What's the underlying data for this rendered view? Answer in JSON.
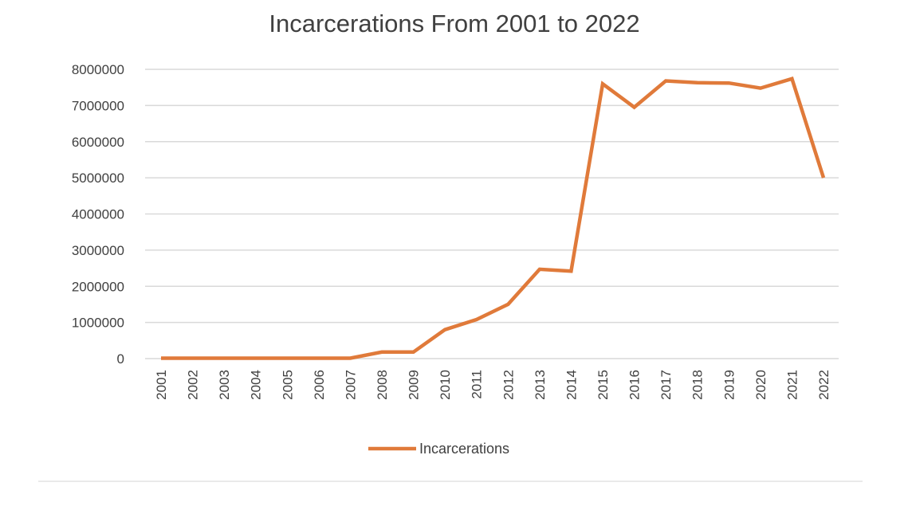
{
  "chart_data": {
    "type": "line",
    "title": "Incarcerations From 2001 to 2022",
    "xlabel": "",
    "ylabel": "",
    "x": [
      "2001",
      "2002",
      "2003",
      "2004",
      "2005",
      "2006",
      "2007",
      "2008",
      "2009",
      "2010",
      "2011",
      "2012",
      "2013",
      "2014",
      "2015",
      "2016",
      "2017",
      "2018",
      "2019",
      "2020",
      "2021",
      "2022"
    ],
    "series": [
      {
        "name": "Incarcerations",
        "color": "#e07a3a",
        "values": [
          10000,
          10000,
          10000,
          10000,
          10000,
          10000,
          10000,
          180000,
          180000,
          800000,
          1080000,
          1500000,
          2470000,
          2420000,
          7600000,
          6950000,
          7680000,
          7630000,
          7620000,
          7480000,
          7740000,
          5000000
        ]
      }
    ],
    "y_ticks": [
      "0",
      "1000000",
      "2000000",
      "3000000",
      "4000000",
      "5000000",
      "6000000",
      "7000000",
      "8000000"
    ],
    "ylim": [
      0,
      8000000
    ],
    "grid": true,
    "legend_position": "bottom"
  }
}
